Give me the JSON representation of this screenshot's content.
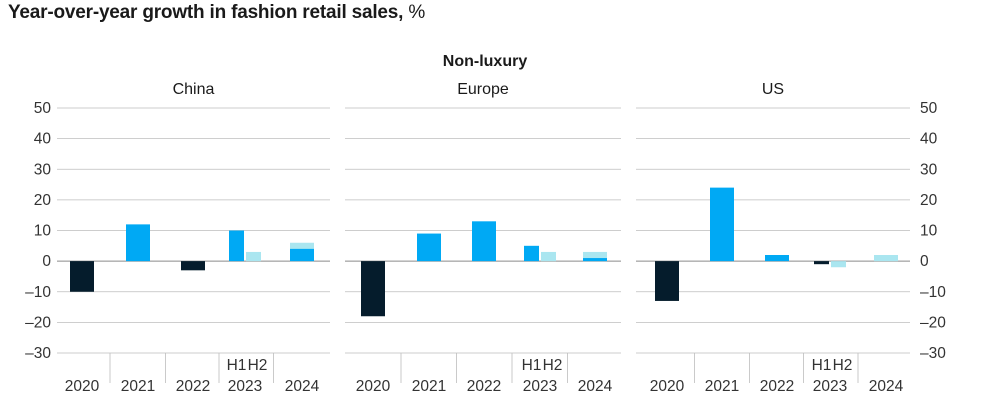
{
  "title": "Year-over-year growth in fashion retail sales,",
  "title_unit": "%",
  "chart_data": {
    "type": "bar",
    "group_title": "Non-luxury",
    "categories": [
      "2020",
      "2021",
      "2022",
      "2023",
      "2024"
    ],
    "half_labels": [
      "H1",
      "H2"
    ],
    "ylim": [
      -30,
      50
    ],
    "yticks": [
      "50",
      "40",
      "30",
      "20",
      "10",
      "0",
      "–10",
      "–20",
      "–30"
    ],
    "colors": {
      "2020": "#051c2c",
      "2021": "#00a9f4",
      "2022_negative": "#051c2c",
      "2022_positive": "#00a9f4",
      "h1": "#00a9f4",
      "h2": "#aae6f0",
      "grid": "#bdbdbd"
    },
    "panels": [
      {
        "name": "China",
        "values": {
          "2020": -10,
          "2021": 12,
          "2022": -3,
          "2023": [
            10,
            3
          ],
          "2024": 6
        },
        "overlay_2024": 4
      },
      {
        "name": "Europe",
        "values": {
          "2020": -18,
          "2021": 9,
          "2022": 13,
          "2023": [
            5,
            3
          ],
          "2024": 3
        },
        "overlay_2024": 1
      },
      {
        "name": "US",
        "values": {
          "2020": -13,
          "2021": 24,
          "2022": 2,
          "2023": [
            -1,
            -2
          ],
          "2024": 2
        },
        "overlay_2024": null
      }
    ]
  }
}
